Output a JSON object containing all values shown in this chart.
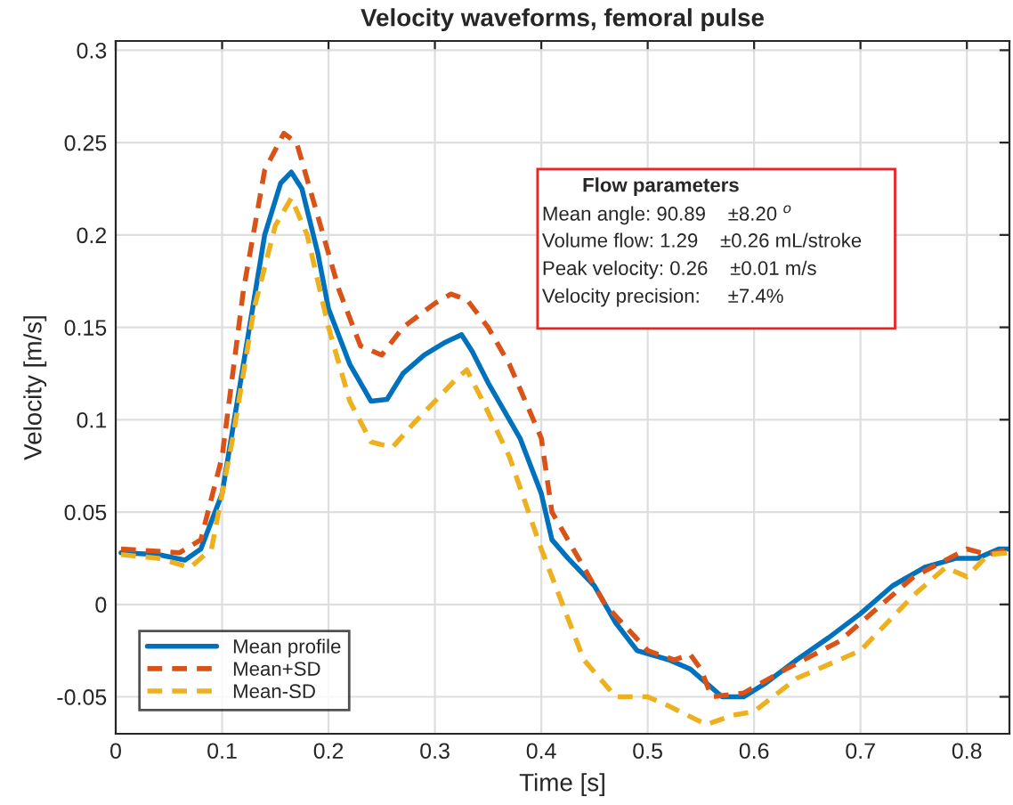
{
  "chart_data": {
    "type": "line",
    "title": "Velocity waveforms, femoral pulse",
    "xlabel": "Time [s]",
    "ylabel": "Velocity [m/s]",
    "xlim": [
      0,
      0.84
    ],
    "ylim": [
      -0.07,
      0.305
    ],
    "xticks": [
      0,
      0.1,
      0.2,
      0.3,
      0.4,
      0.5,
      0.6,
      0.7,
      0.8
    ],
    "yticks": [
      -0.05,
      0,
      0.05,
      0.1,
      0.15,
      0.2,
      0.25,
      0.3
    ],
    "grid": true,
    "legend": "bottom left",
    "series": [
      {
        "name": "Mean profile",
        "color": "#0072bd",
        "line_style": "solid",
        "x": [
          0.005,
          0.04,
          0.065,
          0.08,
          0.1,
          0.12,
          0.14,
          0.155,
          0.165,
          0.175,
          0.19,
          0.2,
          0.22,
          0.24,
          0.255,
          0.27,
          0.29,
          0.31,
          0.325,
          0.335,
          0.35,
          0.38,
          0.4,
          0.41,
          0.425,
          0.45,
          0.47,
          0.49,
          0.52,
          0.54,
          0.57,
          0.59,
          0.61,
          0.64,
          0.67,
          0.7,
          0.73,
          0.76,
          0.79,
          0.81,
          0.83,
          0.84
        ],
        "values": [
          0.028,
          0.027,
          0.024,
          0.03,
          0.06,
          0.13,
          0.2,
          0.228,
          0.234,
          0.225,
          0.19,
          0.16,
          0.13,
          0.11,
          0.111,
          0.125,
          0.135,
          0.142,
          0.146,
          0.137,
          0.12,
          0.09,
          0.06,
          0.035,
          0.025,
          0.01,
          -0.01,
          -0.025,
          -0.03,
          -0.035,
          -0.05,
          -0.05,
          -0.043,
          -0.03,
          -0.018,
          -0.005,
          0.01,
          0.02,
          0.025,
          0.025,
          0.03,
          0.03
        ]
      },
      {
        "name": "Mean+SD",
        "color": "#d95319",
        "line_style": "dashed",
        "x": [
          0.005,
          0.06,
          0.08,
          0.1,
          0.12,
          0.14,
          0.158,
          0.17,
          0.19,
          0.21,
          0.23,
          0.25,
          0.27,
          0.3,
          0.315,
          0.33,
          0.35,
          0.37,
          0.4,
          0.41,
          0.43,
          0.46,
          0.5,
          0.525,
          0.54,
          0.55,
          0.56,
          0.59,
          0.63,
          0.68,
          0.72,
          0.75,
          0.8,
          0.82,
          0.84
        ],
        "values": [
          0.03,
          0.028,
          0.035,
          0.08,
          0.17,
          0.235,
          0.255,
          0.25,
          0.21,
          0.17,
          0.14,
          0.135,
          0.15,
          0.163,
          0.168,
          0.165,
          0.15,
          0.13,
          0.09,
          0.05,
          0.03,
          0.0,
          -0.025,
          -0.03,
          -0.027,
          -0.035,
          -0.05,
          -0.048,
          -0.035,
          -0.02,
          0.0,
          0.015,
          0.03,
          0.027,
          0.03
        ]
      },
      {
        "name": "Mean-SD",
        "color": "#edb120",
        "line_style": "dashed",
        "x": [
          0.005,
          0.04,
          0.07,
          0.09,
          0.11,
          0.13,
          0.15,
          0.165,
          0.18,
          0.2,
          0.22,
          0.24,
          0.26,
          0.28,
          0.3,
          0.32,
          0.33,
          0.345,
          0.37,
          0.4,
          0.42,
          0.44,
          0.47,
          0.5,
          0.52,
          0.555,
          0.58,
          0.6,
          0.64,
          0.7,
          0.75,
          0.78,
          0.8,
          0.82,
          0.84
        ],
        "values": [
          0.027,
          0.025,
          0.02,
          0.03,
          0.09,
          0.16,
          0.205,
          0.22,
          0.2,
          0.15,
          0.11,
          0.088,
          0.085,
          0.098,
          0.11,
          0.122,
          0.127,
          0.11,
          0.08,
          0.03,
          0.0,
          -0.03,
          -0.05,
          -0.05,
          -0.055,
          -0.065,
          -0.06,
          -0.058,
          -0.04,
          -0.025,
          0.005,
          0.02,
          0.015,
          0.027,
          0.028
        ]
      }
    ],
    "annotations": [
      "Flow parameters",
      "Mean angle: 90.89    ±8.20 $^{o}$",
      "Volume flow: 1.29    ±0.26 mL/stroke",
      "Peak velocity: 0.26    ±0.01 m/s",
      "Velocity precision:     ±7.4%"
    ]
  }
}
